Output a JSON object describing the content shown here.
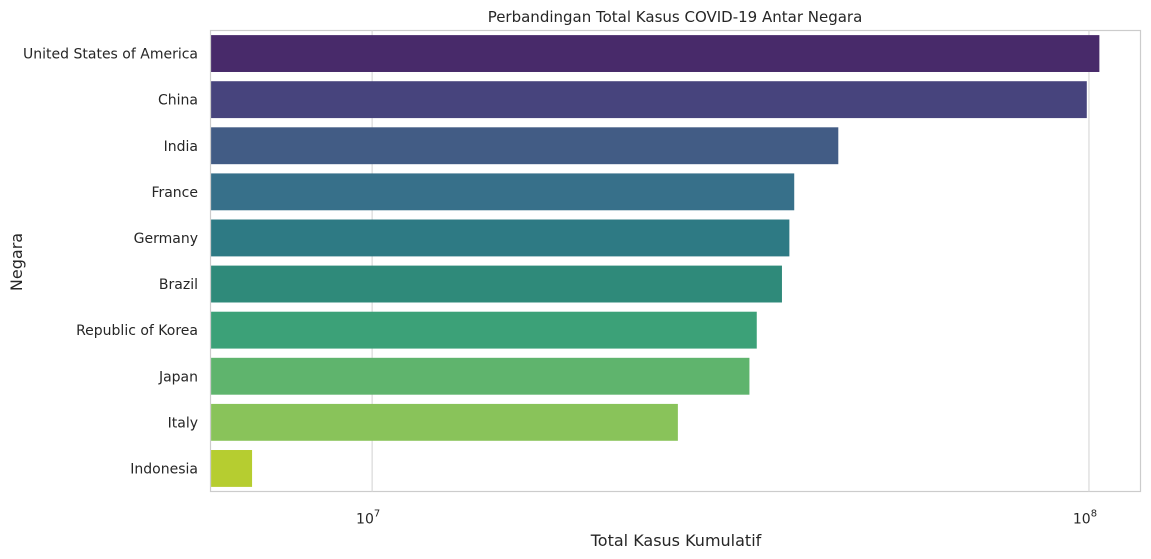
{
  "chart_data": {
    "type": "bar",
    "orientation": "horizontal",
    "title": "Perbandingan Total Kasus COVID-19 Antar Negara",
    "xlabel": "Total Kasus Kumulatif",
    "ylabel": "Negara",
    "xscale": "log",
    "xlim": [
      5950000,
      118000000
    ],
    "grid": true,
    "categories": [
      "United States of America",
      "China",
      "India",
      "France",
      "Germany",
      "Brazil",
      "Republic of Korea",
      "Japan",
      "Italy",
      "Indonesia"
    ],
    "values": [
      103400000,
      99300000,
      44700000,
      38800000,
      38200000,
      37300000,
      34400000,
      33600000,
      26700000,
      6800000
    ],
    "colors": [
      "#482a6a",
      "#47447d",
      "#425c85",
      "#37708a",
      "#2e7a84",
      "#2f8a7a",
      "#3ca178",
      "#5fb46d",
      "#89c35a",
      "#b6cd30"
    ],
    "xticks": [
      {
        "value": 10000000,
        "base": "10",
        "exp": "7"
      },
      {
        "value": 100000000,
        "base": "10",
        "exp": "8"
      }
    ]
  }
}
